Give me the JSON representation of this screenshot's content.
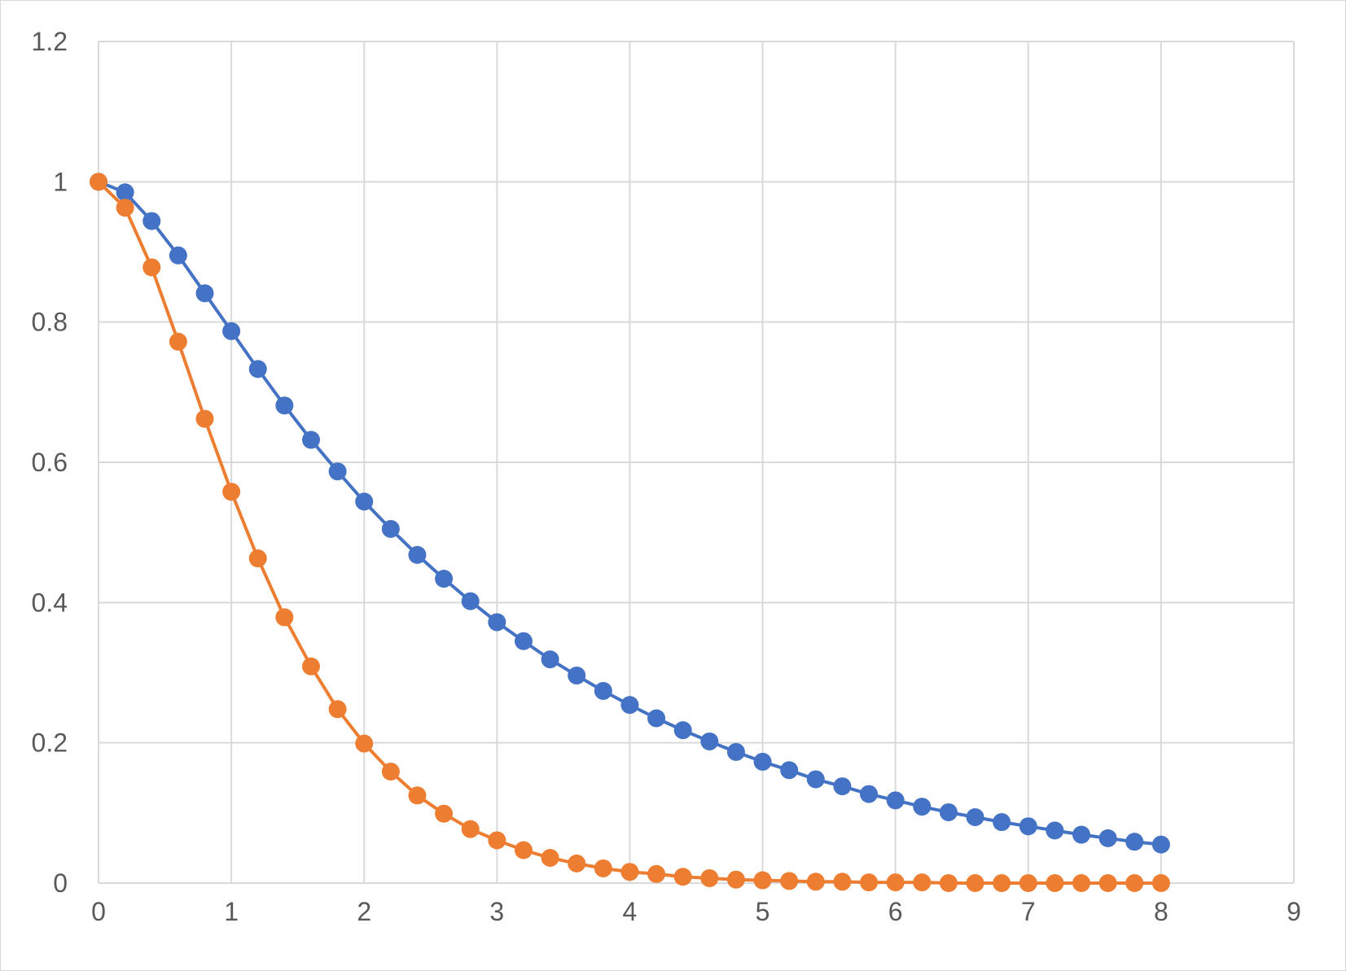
{
  "chart_data": {
    "type": "scatter",
    "title": "",
    "xlabel": "",
    "ylabel": "",
    "xlim": [
      0,
      9
    ],
    "ylim": [
      0,
      1.2
    ],
    "x_ticks": [
      0,
      1,
      2,
      3,
      4,
      5,
      6,
      7,
      8,
      9
    ],
    "y_ticks": [
      0,
      0.2,
      0.4,
      0.6,
      0.8,
      1,
      1.2
    ],
    "x_tick_labels": [
      "0",
      "1",
      "2",
      "3",
      "4",
      "5",
      "6",
      "7",
      "8",
      "9"
    ],
    "y_tick_labels": [
      "0",
      "0.2",
      "0.4",
      "0.6",
      "0.8",
      "1",
      "1.2"
    ],
    "grid": true,
    "legend": "none",
    "x": [
      0,
      0.2,
      0.4,
      0.6,
      0.8,
      1,
      1.2,
      1.4,
      1.6,
      1.8,
      2,
      2.2,
      2.4,
      2.6,
      2.8,
      3,
      3.2,
      3.4,
      3.6,
      3.8,
      4,
      4.2,
      4.4,
      4.6,
      4.8,
      5,
      5.2,
      5.4,
      5.6,
      5.8,
      6,
      6.2,
      6.4,
      6.6,
      6.8,
      7,
      7.2,
      7.4,
      7.6,
      7.8,
      8
    ],
    "series": [
      {
        "color": "#4472c4",
        "values": [
          1.0,
          0.985,
          0.944,
          0.895,
          0.841,
          0.787,
          0.733,
          0.681,
          0.632,
          0.587,
          0.544,
          0.505,
          0.468,
          0.434,
          0.402,
          0.372,
          0.345,
          0.319,
          0.296,
          0.274,
          0.254,
          0.235,
          0.218,
          0.202,
          0.187,
          0.173,
          0.161,
          0.148,
          0.138,
          0.127,
          0.118,
          0.109,
          0.101,
          0.094,
          0.087,
          0.081,
          0.075,
          0.069,
          0.064,
          0.059,
          0.055
        ]
      },
      {
        "color": "#ed7d31",
        "values": [
          1.0,
          0.963,
          0.878,
          0.772,
          0.662,
          0.558,
          0.463,
          0.379,
          0.309,
          0.248,
          0.199,
          0.159,
          0.125,
          0.099,
          0.077,
          0.061,
          0.047,
          0.036,
          0.028,
          0.021,
          0.016,
          0.013,
          0.009,
          0.007,
          0.005,
          0.004,
          0.003,
          0.002,
          0.002,
          0.001,
          0.001,
          0.001,
          0.0,
          0.0,
          0.0,
          0.0,
          0.0,
          0.0,
          0.0,
          0.0,
          0.0
        ]
      }
    ]
  }
}
